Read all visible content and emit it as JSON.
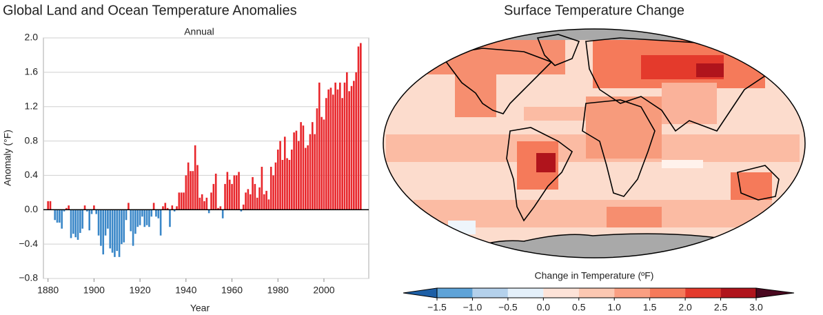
{
  "chart_data": [
    {
      "type": "bar",
      "title": "Global Land and Ocean Temperature Anomalies",
      "subtitle": "Annual",
      "x_label": "Year",
      "y_label": "Anomaly (°F)",
      "x": [
        1880,
        1881,
        1882,
        1883,
        1884,
        1885,
        1886,
        1887,
        1888,
        1889,
        1890,
        1891,
        1892,
        1893,
        1894,
        1895,
        1896,
        1897,
        1898,
        1899,
        1900,
        1901,
        1902,
        1903,
        1904,
        1905,
        1906,
        1907,
        1908,
        1909,
        1910,
        1911,
        1912,
        1913,
        1914,
        1915,
        1916,
        1917,
        1918,
        1919,
        1920,
        1921,
        1922,
        1923,
        1924,
        1925,
        1926,
        1927,
        1928,
        1929,
        1930,
        1931,
        1932,
        1933,
        1934,
        1935,
        1936,
        1937,
        1938,
        1939,
        1940,
        1941,
        1942,
        1943,
        1944,
        1945,
        1946,
        1947,
        1948,
        1949,
        1950,
        1951,
        1952,
        1953,
        1954,
        1955,
        1956,
        1957,
        1958,
        1959,
        1960,
        1961,
        1962,
        1963,
        1964,
        1965,
        1966,
        1967,
        1968,
        1969,
        1970,
        1971,
        1972,
        1973,
        1974,
        1975,
        1976,
        1977,
        1978,
        1979,
        1980,
        1981,
        1982,
        1983,
        1984,
        1985,
        1986,
        1987,
        1988,
        1989,
        1990,
        1991,
        1992,
        1993,
        1994,
        1995,
        1996,
        1997,
        1998,
        1999,
        2000,
        2001,
        2002,
        2003,
        2004,
        2005,
        2006,
        2007,
        2008,
        2009,
        2010,
        2011,
        2012,
        2013,
        2014,
        2015,
        2016
      ],
      "values": [
        0.1,
        0.1,
        0.0,
        -0.12,
        -0.15,
        -0.15,
        -0.22,
        -0.02,
        0.02,
        0.05,
        -0.33,
        -0.28,
        -0.32,
        -0.35,
        -0.27,
        -0.22,
        0.05,
        -0.02,
        -0.24,
        -0.05,
        0.05,
        -0.05,
        -0.3,
        -0.42,
        -0.52,
        -0.3,
        -0.22,
        -0.45,
        -0.5,
        -0.55,
        -0.48,
        -0.55,
        -0.4,
        -0.38,
        -0.12,
        0.08,
        -0.25,
        -0.42,
        -0.28,
        -0.2,
        -0.18,
        -0.08,
        -0.2,
        -0.18,
        -0.2,
        -0.08,
        0.08,
        -0.08,
        -0.1,
        -0.3,
        0.04,
        0.08,
        0.02,
        -0.2,
        0.05,
        -0.02,
        0.04,
        0.2,
        0.2,
        0.2,
        0.4,
        0.55,
        0.45,
        0.45,
        0.75,
        0.52,
        0.14,
        0.18,
        0.1,
        0.14,
        -0.04,
        0.2,
        0.3,
        0.42,
        0.02,
        0.04,
        -0.1,
        0.3,
        0.44,
        0.35,
        0.3,
        0.4,
        0.4,
        0.44,
        -0.02,
        0.06,
        0.2,
        0.24,
        0.18,
        0.38,
        0.3,
        0.14,
        0.26,
        0.5,
        0.18,
        0.22,
        0.12,
        0.5,
        0.4,
        0.55,
        0.7,
        0.8,
        0.58,
        0.85,
        0.6,
        0.58,
        0.7,
        0.9,
        0.92,
        0.8,
        1.02,
        0.98,
        0.72,
        0.75,
        0.88,
        1.02,
        0.88,
        1.18,
        1.48,
        1.08,
        1.05,
        1.3,
        1.4,
        1.42,
        1.34,
        1.48,
        1.4,
        1.48,
        1.3,
        1.48,
        1.6,
        1.38,
        1.44,
        1.5,
        1.6,
        1.9,
        1.94
      ],
      "positive_color": "#e8262b",
      "negative_color": "#3a87c8",
      "xlim": [
        1878,
        2019.5
      ],
      "xticks": [
        1880,
        1900,
        1920,
        1940,
        1960,
        1980,
        2000
      ],
      "ylim": [
        -0.8,
        2.0
      ],
      "yticks": [
        {
          "value": -0.8,
          "label": "−0.8"
        },
        {
          "value": -0.4,
          "label": "−0.4"
        },
        {
          "value": 0,
          "label": "0.0"
        },
        0.4,
        0.8,
        1.2,
        1.6,
        {
          "value": 2.0,
          "label": "2.0"
        }
      ],
      "grid": true
    },
    {
      "type": "map",
      "title": "Surface Temperature Change",
      "colorbar": {
        "label": "Change in Temperature (ºF)",
        "ticks": [
          {
            "value": -1.5,
            "label": "−1.5"
          },
          {
            "value": -1.0,
            "label": "−1.0"
          },
          {
            "value": -0.5,
            "label": "−0.5"
          },
          {
            "value": 0,
            "label": "0.0"
          },
          0.5,
          {
            "value": 1.0,
            "label": "1.0"
          },
          1.5,
          {
            "value": 2.0,
            "label": "2.0"
          },
          2.5,
          {
            "value": 3.0,
            "label": "3.0"
          }
        ],
        "colors": [
          "#5ea3d8",
          "#b4d1ec",
          "#e4f0fa",
          "#fde3d8",
          "#fcc8b2",
          "#fa9f82",
          "#f57a5a",
          "#e43a2c",
          "#b0141c"
        ],
        "extend_colors": [
          "#1d5fa6",
          "#4a0820"
        ]
      }
    }
  ]
}
